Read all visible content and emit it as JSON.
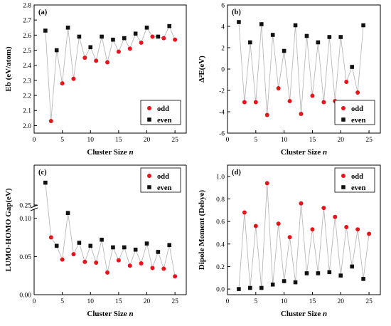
{
  "chart_data": [
    {
      "type": "scatter",
      "panel_label": "(a)",
      "xlabel": "Cluster Size",
      "xlabel_var": "n",
      "ylabel": "Eb (eV/atom)",
      "xlim": [
        0,
        27
      ],
      "ylim": [
        1.95,
        2.8
      ],
      "xticks": [
        0,
        5,
        10,
        15,
        20,
        25
      ],
      "yticks": [
        2.0,
        2.1,
        2.2,
        2.3,
        2.4,
        2.5,
        2.6,
        2.7,
        2.8
      ],
      "ytick_decimals": 1,
      "legend_position": "bottom-right",
      "connecting_line": true,
      "series": [
        {
          "name": "odd",
          "marker": "circle",
          "color": "#e8141b",
          "x": [
            3,
            5,
            7,
            9,
            11,
            13,
            15,
            17,
            19,
            21,
            23,
            25
          ],
          "y": [
            2.03,
            2.28,
            2.31,
            2.45,
            2.43,
            2.42,
            2.49,
            2.51,
            2.55,
            2.59,
            2.58,
            2.57
          ]
        },
        {
          "name": "even",
          "marker": "square",
          "color": "#111111",
          "x": [
            2,
            4,
            6,
            8,
            10,
            12,
            14,
            16,
            18,
            20,
            22,
            24
          ],
          "y": [
            2.63,
            2.5,
            2.65,
            2.59,
            2.52,
            2.59,
            2.57,
            2.58,
            2.61,
            2.65,
            2.59,
            2.66
          ]
        }
      ]
    },
    {
      "type": "scatter",
      "panel_label": "(b)",
      "xlabel": "Cluster Size",
      "xlabel_var": "n",
      "ylabel": "Δ²E(eV)",
      "xlim": [
        0,
        27
      ],
      "ylim": [
        -6,
        6
      ],
      "xticks": [
        0,
        5,
        10,
        15,
        20,
        25
      ],
      "yticks": [
        -6,
        -4,
        -2,
        0,
        2,
        4,
        6
      ],
      "ytick_decimals": 0,
      "legend_position": "bottom-right",
      "connecting_line": true,
      "series": [
        {
          "name": "odd",
          "marker": "circle",
          "color": "#e8141b",
          "x": [
            3,
            5,
            7,
            9,
            11,
            13,
            15,
            17,
            19,
            21,
            23
          ],
          "y": [
            -3.1,
            -3.1,
            -4.3,
            -1.8,
            -3.0,
            -4.2,
            -2.5,
            -3.1,
            -3.0,
            -1.2,
            -2.2
          ]
        },
        {
          "name": "even",
          "marker": "square",
          "color": "#111111",
          "x": [
            2,
            4,
            6,
            8,
            10,
            12,
            14,
            16,
            18,
            20,
            22,
            24
          ],
          "y": [
            4.4,
            2.5,
            4.2,
            3.2,
            1.7,
            4.1,
            3.1,
            2.5,
            3.0,
            3.0,
            0.2,
            4.1
          ]
        }
      ]
    },
    {
      "type": "scatter",
      "panel_label": "(c)",
      "xlabel": "Cluster Size",
      "xlabel_var": "n",
      "ylabel": "LUMO-HOMO Gap(eV)",
      "xlim": [
        0,
        27
      ],
      "ylim": [
        0,
        0.3
      ],
      "axis_break": [
        0.11,
        0.25
      ],
      "xticks": [
        0,
        5,
        10,
        15,
        20,
        25
      ],
      "yticks": [
        0.0,
        0.05,
        0.1,
        0.25
      ],
      "ytick_decimals": 2,
      "legend_position": "top-right",
      "connecting_line": true,
      "series": [
        {
          "name": "odd",
          "marker": "circle",
          "color": "#e8141b",
          "x": [
            3,
            5,
            7,
            9,
            11,
            13,
            15,
            17,
            19,
            21,
            23,
            25
          ],
          "y": [
            0.075,
            0.046,
            0.053,
            0.043,
            0.042,
            0.029,
            0.045,
            0.038,
            0.041,
            0.035,
            0.034,
            0.024
          ]
        },
        {
          "name": "even",
          "marker": "square",
          "color": "#111111",
          "x": [
            2,
            4,
            6,
            8,
            10,
            12,
            14,
            16,
            18,
            20,
            22,
            24
          ],
          "y": [
            0.278,
            0.064,
            0.107,
            0.068,
            0.064,
            0.072,
            0.062,
            0.062,
            0.059,
            0.067,
            0.056,
            0.065
          ]
        }
      ]
    },
    {
      "type": "scatter",
      "panel_label": "(d)",
      "xlabel": "Cluster Size",
      "xlabel_var": "n",
      "ylabel": "Dipole Moment (Debye)",
      "xlim": [
        0,
        27
      ],
      "ylim": [
        -0.05,
        1.1
      ],
      "xticks": [
        0,
        5,
        10,
        15,
        20,
        25
      ],
      "yticks": [
        0.0,
        0.2,
        0.4,
        0.6,
        0.8,
        1.0
      ],
      "ytick_decimals": 1,
      "legend_position": "top-right",
      "connecting_line": true,
      "series": [
        {
          "name": "odd",
          "marker": "circle",
          "color": "#e8141b",
          "x": [
            3,
            5,
            7,
            9,
            11,
            13,
            15,
            17,
            19,
            21,
            23,
            25
          ],
          "y": [
            0.68,
            0.56,
            0.94,
            0.58,
            0.46,
            0.76,
            0.53,
            0.72,
            0.64,
            0.55,
            0.53,
            0.49
          ]
        },
        {
          "name": "even",
          "marker": "square",
          "color": "#111111",
          "x": [
            2,
            4,
            6,
            8,
            10,
            12,
            14,
            16,
            18,
            20,
            22,
            24
          ],
          "y": [
            0.0,
            0.01,
            0.01,
            0.04,
            0.07,
            0.06,
            0.14,
            0.14,
            0.15,
            0.12,
            0.2,
            0.09
          ]
        }
      ]
    }
  ]
}
